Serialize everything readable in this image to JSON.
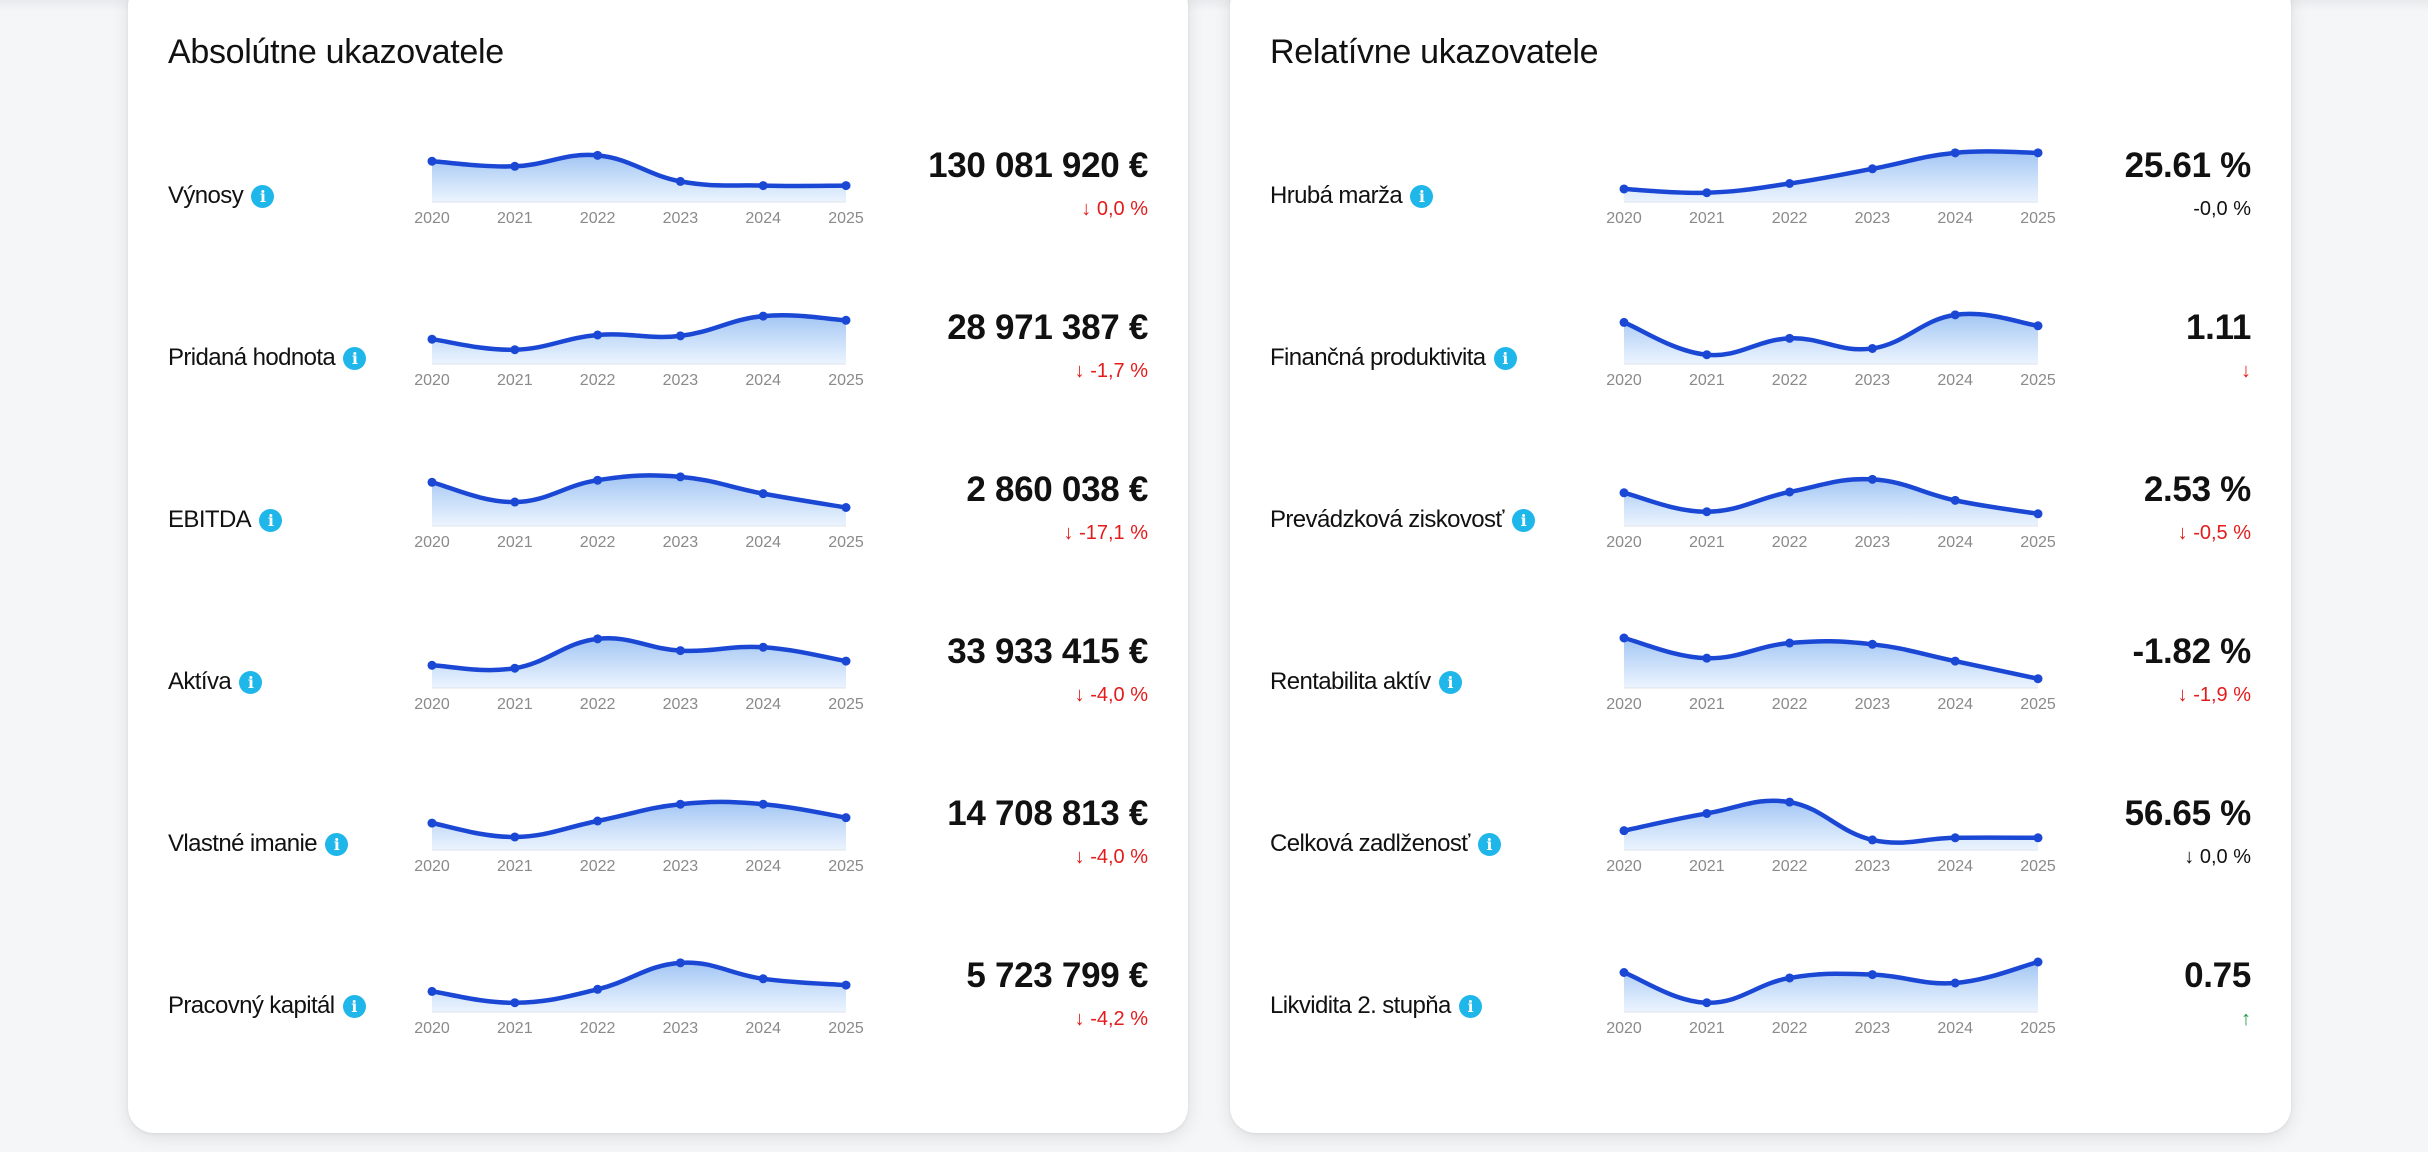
{
  "colors": {
    "line": "#1a47d4",
    "fill_top": "#9cc2f3",
    "fill_bottom": "#e8f2fe",
    "info": "#1fb6ea",
    "down": "#e31b1b",
    "up": "#1a9a3a",
    "axis": "#8a8a8a"
  },
  "years": [
    "2020",
    "2021",
    "2022",
    "2023",
    "2024",
    "2025"
  ],
  "absolute": {
    "title": "Absolútne ukazovatele",
    "rows": [
      {
        "label": "Výnosy",
        "value": "130 081 920 €",
        "change": "↓ 0,0 %",
        "trend": "red",
        "series": [
          0.78,
          0.66,
          0.92,
          0.3,
          0.2,
          0.2
        ]
      },
      {
        "label": "Pridaná hodnota",
        "value": "28 971 387 €",
        "change": "↓ -1,7 %",
        "trend": "red",
        "series": [
          0.4,
          0.15,
          0.5,
          0.48,
          0.95,
          0.85
        ]
      },
      {
        "label": "EBITDA",
        "value": "2 860 038 €",
        "change": "↓ -17,1 %",
        "trend": "red",
        "series": [
          0.85,
          0.38,
          0.9,
          0.98,
          0.58,
          0.25
        ]
      },
      {
        "label": "Aktíva",
        "value": "33 933 415 €",
        "change": "↓ -4,0 %",
        "trend": "red",
        "series": [
          0.35,
          0.28,
          0.98,
          0.7,
          0.78,
          0.45
        ]
      },
      {
        "label": "Vlastné imanie",
        "value": "14 708 813 €",
        "change": "↓ -4,0 %",
        "trend": "red",
        "series": [
          0.45,
          0.12,
          0.5,
          0.9,
          0.9,
          0.58
        ]
      },
      {
        "label": "Pracovný kapitál",
        "value": "5 723 799 €",
        "change": "↓ -4,2 %",
        "trend": "red",
        "series": [
          0.3,
          0.03,
          0.35,
          0.98,
          0.6,
          0.45
        ]
      }
    ]
  },
  "relative": {
    "title": "Relatívne ukazovatele",
    "rows": [
      {
        "label": "Hrubá marža",
        "value": "25.61 %",
        "change": "-0,0 %",
        "trend": "dark",
        "series": [
          0.12,
          0.03,
          0.25,
          0.6,
          0.98,
          0.98
        ]
      },
      {
        "label": "Finančná produktivita",
        "value": "1.11",
        "change": "↓",
        "trend": "red",
        "series": [
          0.8,
          0.03,
          0.42,
          0.18,
          0.98,
          0.72
        ]
      },
      {
        "label": "Prevádzková ziskovosť",
        "value": "2.53 %",
        "change": "↓ -0,5 %",
        "trend": "red",
        "series": [
          0.6,
          0.15,
          0.62,
          0.92,
          0.42,
          0.1
        ]
      },
      {
        "label": "Rentabilita aktív",
        "value": "-1.82 %",
        "change": "↓ -1,9 %",
        "trend": "red",
        "series": [
          1.0,
          0.52,
          0.88,
          0.85,
          0.45,
          0.03
        ]
      },
      {
        "label": "Celková zadlženosť",
        "value": "56.65 %",
        "change": "↓ 0,0 %",
        "trend": "dark",
        "series": [
          0.27,
          0.68,
          0.95,
          0.05,
          0.1,
          0.1
        ]
      },
      {
        "label": "Likvidita 2. stupňa",
        "value": "0.75",
        "change": "↑",
        "trend": "green",
        "series": [
          0.75,
          0.03,
          0.62,
          0.7,
          0.5,
          1.0
        ]
      }
    ]
  }
}
